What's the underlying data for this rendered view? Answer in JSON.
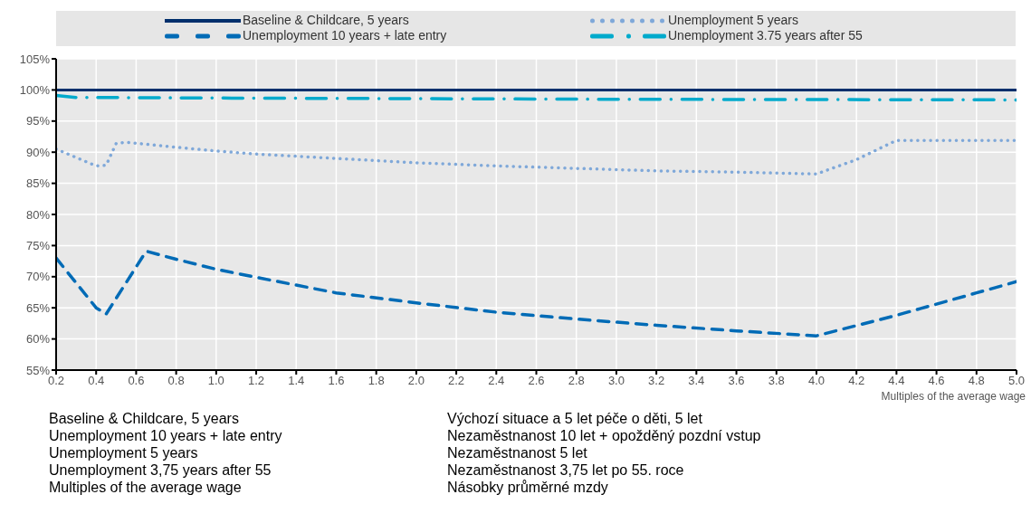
{
  "chart_data": {
    "type": "line",
    "xlabel": "Multiples of the average wage",
    "legend": "top",
    "grid": true,
    "xlim": [
      0.2,
      5.0
    ],
    "xticks": [
      {
        "value": 0.2,
        "label": "0.2"
      },
      {
        "value": 0.4,
        "label": "0.4"
      },
      {
        "value": 0.6,
        "label": "0.6"
      },
      {
        "value": 0.8,
        "label": "0.8"
      },
      {
        "value": 1.0,
        "label": "1.0"
      },
      {
        "value": 1.2,
        "label": "1.2"
      },
      {
        "value": 1.4,
        "label": "1.4"
      },
      {
        "value": 1.6,
        "label": "1.6"
      },
      {
        "value": 1.8,
        "label": "1.8"
      },
      {
        "value": 2.0,
        "label": "2.0"
      },
      {
        "value": 2.2,
        "label": "2.2"
      },
      {
        "value": 2.4,
        "label": "2.4"
      },
      {
        "value": 2.6,
        "label": "2.6"
      },
      {
        "value": 2.8,
        "label": "2.8"
      },
      {
        "value": 3.0,
        "label": "3.0"
      },
      {
        "value": 3.2,
        "label": "3.2"
      },
      {
        "value": 3.4,
        "label": "3.4"
      },
      {
        "value": 3.6,
        "label": "3.6"
      },
      {
        "value": 3.8,
        "label": "3.8"
      },
      {
        "value": 4.0,
        "label": "4.0"
      },
      {
        "value": 4.2,
        "label": "4.2"
      },
      {
        "value": 4.4,
        "label": "4.4"
      },
      {
        "value": 4.6,
        "label": "4.6"
      },
      {
        "value": 4.8,
        "label": "4.8"
      },
      {
        "value": 5.0,
        "label": "5.0"
      }
    ],
    "ylim": [
      55,
      105
    ],
    "yticks": [
      {
        "value": 55,
        "label": "55%"
      },
      {
        "value": 60,
        "label": "60%"
      },
      {
        "value": 65,
        "label": "65%"
      },
      {
        "value": 70,
        "label": "70%"
      },
      {
        "value": 75,
        "label": "75%"
      },
      {
        "value": 80,
        "label": "80%"
      },
      {
        "value": 85,
        "label": "85%"
      },
      {
        "value": 90,
        "label": "90%"
      },
      {
        "value": 95,
        "label": "95%"
      },
      {
        "value": 100,
        "label": "100%"
      },
      {
        "value": 105,
        "label": "105%"
      }
    ],
    "series": [
      {
        "name": "Baseline & Childcare, 5 years",
        "color": "#002f6c",
        "line_style": "solid",
        "x": [
          0.2,
          5.0
        ],
        "values": [
          100,
          100
        ]
      },
      {
        "name": "Unemployment 5 years",
        "color": "#7fa8d9",
        "line_style": "dotted",
        "x": [
          0.2,
          0.4,
          0.45,
          0.5,
          0.55,
          0.8,
          1.0,
          1.2,
          1.6,
          2.0,
          2.4,
          2.8,
          3.2,
          3.6,
          4.0,
          4.2,
          4.4,
          5.0
        ],
        "values": [
          90.5,
          87.8,
          87.9,
          91.4,
          91.6,
          90.8,
          90.2,
          89.7,
          89.0,
          88.3,
          87.8,
          87.4,
          87.0,
          86.8,
          86.5,
          88.8,
          91.9,
          91.9
        ]
      },
      {
        "name": "Unemployment 10 years + late entry",
        "color": "#006bb6",
        "line_style": "dashed",
        "x": [
          0.2,
          0.4,
          0.45,
          0.65,
          0.8,
          1.0,
          1.2,
          1.6,
          2.0,
          2.4,
          2.8,
          3.2,
          3.6,
          4.0,
          4.4,
          4.8,
          5.0
        ],
        "values": [
          73.0,
          65.0,
          64.0,
          74.1,
          72.8,
          71.2,
          69.9,
          67.4,
          65.8,
          64.3,
          63.2,
          62.2,
          61.3,
          60.5,
          63.8,
          67.4,
          69.2
        ]
      },
      {
        "name": "Unemployment 3.75 years after 55",
        "color": "#00aacc",
        "line_style": "dashdot",
        "x": [
          0.2,
          0.3,
          1.0,
          2.0,
          3.0,
          5.0
        ],
        "values": [
          99.1,
          98.8,
          98.7,
          98.6,
          98.5,
          98.4
        ]
      }
    ],
    "annotations": [
      "Baseline & Childcare, 5 years",
      "Výchozí situace a 5 let péče o děti, 5 let",
      "Unemployment 10 years + late entry",
      "Nezaměstnanost 10 let + opožděný pozdní vstup",
      "Unemployment 5 years",
      "Nezaměstnanost 5 let",
      "Unemployment 3,75 years after 55",
      "Nezaměstnanost 3,75 let po 55. roce",
      "Multiples of the average wage",
      "Násobky průměrné mzdy"
    ]
  }
}
